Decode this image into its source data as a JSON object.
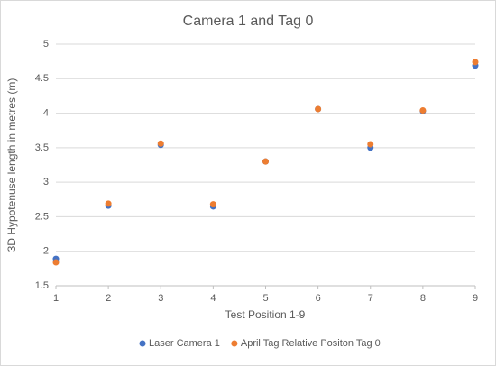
{
  "chart_data": {
    "type": "scatter",
    "title": "Camera 1 and Tag 0",
    "x_label": "Test Position 1-9",
    "y_label": "3D Hypotenuse length in metres (m)",
    "series": [
      {
        "name": "Laser Camera 1",
        "color": "#4472c4",
        "x": [
          1,
          2,
          3,
          4,
          5,
          6,
          7,
          8,
          9
        ],
        "values": [
          1.89,
          2.66,
          3.54,
          2.65,
          3.3,
          4.06,
          3.5,
          4.03,
          4.69
        ]
      },
      {
        "name": "April Tag Relative Positon Tag 0",
        "color": "#ed7d31",
        "x": [
          1,
          2,
          3,
          4,
          5,
          6,
          7,
          8,
          9
        ],
        "values": [
          1.84,
          2.69,
          3.56,
          2.68,
          3.3,
          4.06,
          3.55,
          4.04,
          4.74
        ]
      }
    ],
    "xlim": [
      1,
      9
    ],
    "xticks": [
      1,
      2,
      3,
      4,
      5,
      6,
      7,
      8,
      9
    ],
    "ylim": [
      1.5,
      5
    ],
    "yticks": [
      1.5,
      2,
      2.5,
      3,
      3.5,
      4,
      4.5,
      5
    ],
    "grid": true,
    "legend": "bottom"
  }
}
